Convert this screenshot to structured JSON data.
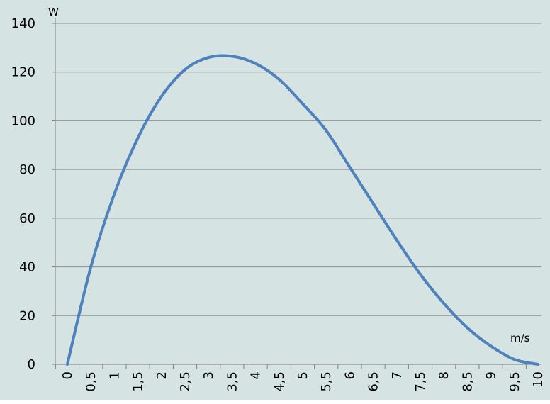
{
  "chart_data": {
    "type": "line",
    "title": "",
    "ylabel": "W",
    "xlabel": "m/s",
    "ylim": [
      0,
      140
    ],
    "yticks": [
      "0",
      "20",
      "40",
      "60",
      "80",
      "100",
      "120",
      "140"
    ],
    "categories": [
      "0",
      "0,5",
      "1",
      "1,5",
      "2",
      "2,5",
      "3",
      "3,5",
      "4",
      "4,5",
      "5",
      "5,5",
      "6",
      "6,5",
      "7",
      "7,5",
      "8",
      "8,5",
      "9",
      "9,5",
      "10"
    ],
    "series": [
      {
        "values": [
          0,
          40,
          70,
          93,
          110,
          121,
          126,
          126.5,
          123.5,
          117,
          107,
          96,
          81,
          66,
          51,
          37,
          25,
          15,
          7.5,
          2,
          0
        ]
      }
    ],
    "grid": true,
    "legend": "none"
  },
  "colors": {
    "plot_background": "#d6e3e3",
    "line": "#4f81bd",
    "grid": "#8c9292",
    "axis": "#7f7f7f"
  }
}
